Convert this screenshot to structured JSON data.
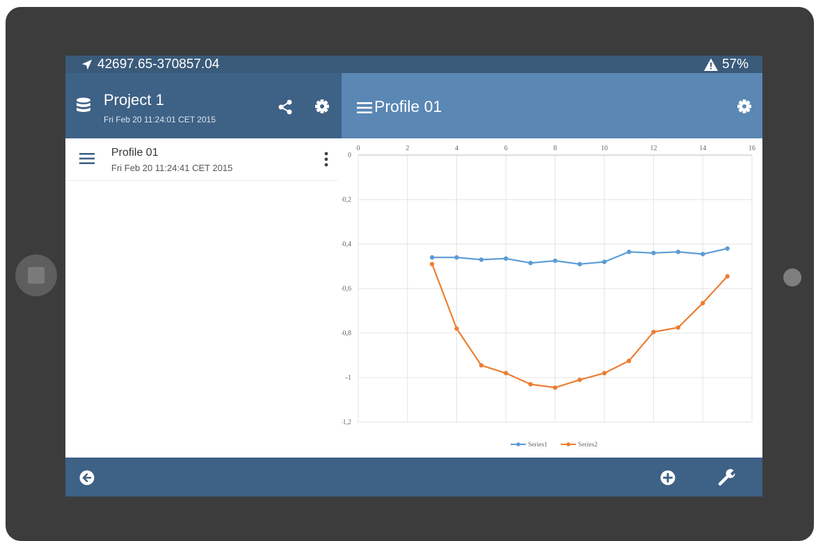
{
  "status_bar": {
    "location_icon": "navigation-arrow-icon",
    "coordinates": "42697.65-370857.04",
    "warning_icon": "warning-triangle-icon",
    "battery": "57%"
  },
  "project": {
    "icon": "database-icon",
    "title": "Project 1",
    "date": "Fri Feb 20 11:24:01 CET 2015",
    "share_icon": "share-icon",
    "settings_icon": "gear-icon"
  },
  "profile_header": {
    "menu_icon": "hamburger-icon",
    "title": "Profile 01",
    "settings_icon": "gear-icon"
  },
  "profiles": [
    {
      "title": "Profile 01",
      "date": "Fri Feb 20 11:24:41 CET 2015"
    }
  ],
  "bottom_bar": {
    "back_icon": "back-arrow-icon",
    "add_icon": "add-circle-icon",
    "tools_icon": "wrench-icon"
  },
  "colors": {
    "status_bar": "#3a5a7a",
    "left_header": "#3e6186",
    "right_header": "#5a87b4",
    "series1": "#5b9bd5",
    "series2": "#ed7d31"
  },
  "chart_data": {
    "type": "line",
    "xlim": [
      0,
      16
    ],
    "ylim": [
      -1.2,
      0
    ],
    "x_ticks": [
      "0",
      "2",
      "4",
      "6",
      "8",
      "10",
      "12",
      "14",
      "16"
    ],
    "y_ticks": [
      "0",
      "-0,2",
      "-0,4",
      "-0,6",
      "-0,8",
      "-1",
      "-1,2"
    ],
    "x_axis_position": "top",
    "grid": true,
    "legend_position": "bottom",
    "x": [
      3,
      4,
      5,
      6,
      7,
      8,
      9,
      10,
      11,
      12,
      13,
      14,
      15
    ],
    "series": [
      {
        "name": "Series1",
        "color": "#5b9bd5",
        "values": [
          -0.46,
          -0.46,
          -0.47,
          -0.465,
          -0.485,
          -0.475,
          -0.49,
          -0.48,
          -0.435,
          -0.44,
          -0.435,
          -0.445,
          -0.42
        ]
      },
      {
        "name": "Series2",
        "color": "#ed7d31",
        "values": [
          -0.49,
          -0.78,
          -0.945,
          -0.98,
          -1.03,
          -1.045,
          -1.01,
          -0.98,
          -0.925,
          -0.795,
          -0.775,
          -0.665,
          -0.545
        ]
      }
    ]
  }
}
